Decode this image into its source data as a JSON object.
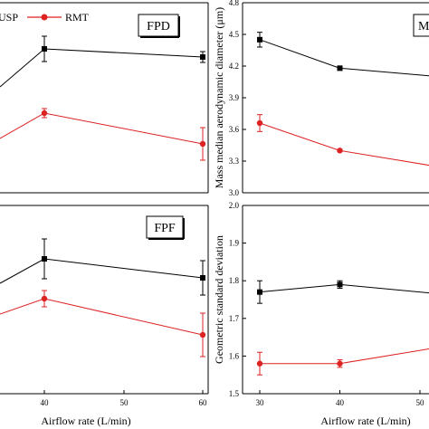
{
  "legend": {
    "usp_label": "USP",
    "rmt_label": "RMT",
    "usp_color": "#000000",
    "rmt_color": "#dd2222"
  },
  "chart_data": [
    {
      "type": "line",
      "panel_label": "FPD",
      "x": [
        40,
        60
      ],
      "series": [
        {
          "name": "USP",
          "color": "#000000",
          "marker": "square",
          "values": [
            null,
            null
          ]
        },
        {
          "name": "RMT",
          "color": "#dd2222",
          "marker": "circle",
          "values": [
            null,
            null
          ]
        }
      ],
      "show_x_ticks": false,
      "show_y_ticks": false
    },
    {
      "type": "line",
      "panel_label": "MMAD",
      "ylabel": "Mass median aerodynamic diameter (μm)",
      "x": [
        30,
        40,
        60
      ],
      "xlim": [
        30,
        60
      ],
      "ylim": [
        3.0,
        4.8
      ],
      "yticks": [
        "3.0",
        "3.3",
        "3.6",
        "3.9",
        "4.2",
        "4.5",
        "4.8"
      ],
      "series": [
        {
          "name": "USP",
          "color": "#000000",
          "marker": "square",
          "values": [
            4.45,
            4.18,
            4.05
          ],
          "errors": [
            0.07,
            0.02,
            null
          ]
        },
        {
          "name": "RMT",
          "color": "#dd2222",
          "marker": "circle",
          "values": [
            3.66,
            3.4,
            3.15
          ],
          "errors": [
            0.08,
            0.01,
            null
          ]
        }
      ]
    },
    {
      "type": "line",
      "panel_label": "FPF",
      "xlabel": "Airflow rate (L/min)",
      "x": [
        40,
        60
      ],
      "xticks": [
        "40",
        "50",
        "60"
      ],
      "series": [
        {
          "name": "USP",
          "color": "#000000",
          "marker": "square",
          "values": [
            null,
            null
          ]
        },
        {
          "name": "RMT",
          "color": "#dd2222",
          "marker": "circle",
          "values": [
            null,
            null
          ]
        }
      ]
    },
    {
      "type": "line",
      "panel_label": "",
      "xlabel": "Airflow rate (L/min)",
      "ylabel": "Geometric standard deviation",
      "x": [
        30,
        40,
        60
      ],
      "xticks": [
        "30",
        "40",
        "50"
      ],
      "xlim": [
        30,
        60
      ],
      "ylim": [
        1.5,
        2.0
      ],
      "yticks": [
        "1.5",
        "1.6",
        "1.7",
        "1.8",
        "1.9",
        "2.0"
      ],
      "series": [
        {
          "name": "USP",
          "color": "#000000",
          "marker": "square",
          "values": [
            1.77,
            1.79,
            1.75
          ],
          "errors": [
            0.03,
            0.01,
            null
          ]
        },
        {
          "name": "RMT",
          "color": "#dd2222",
          "marker": "circle",
          "values": [
            1.58,
            1.58,
            1.65
          ],
          "errors": [
            0.03,
            0.01,
            null
          ]
        }
      ]
    }
  ]
}
